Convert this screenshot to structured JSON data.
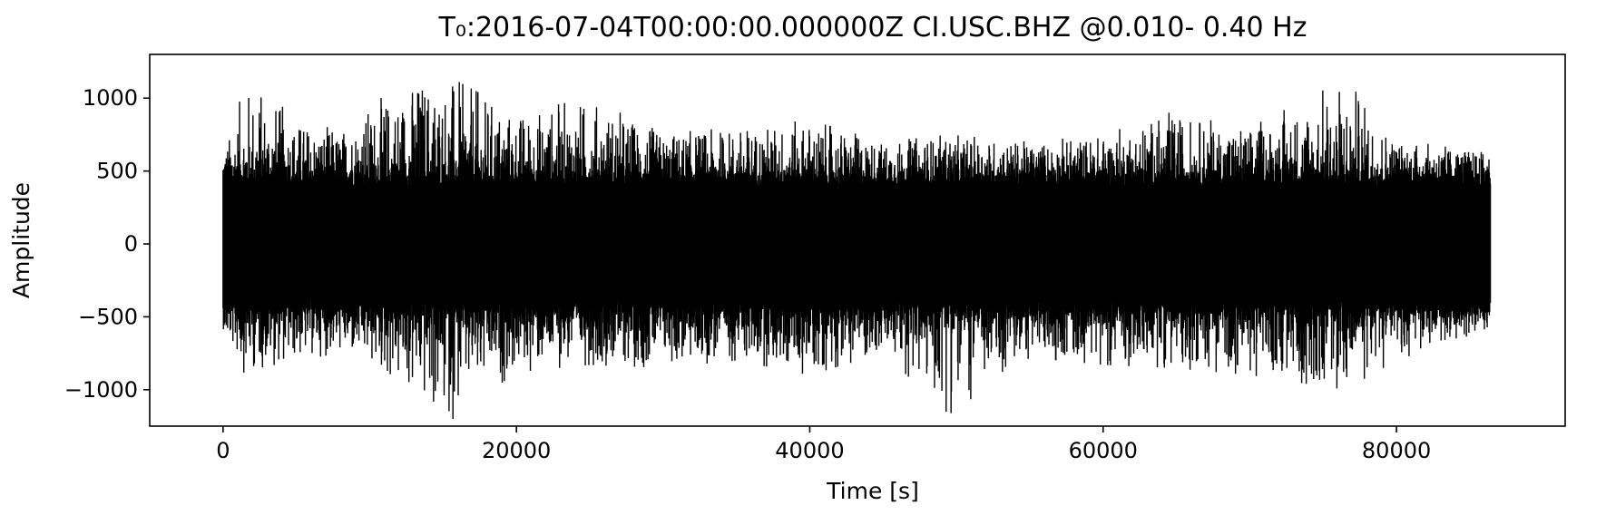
{
  "chart_data": {
    "type": "line",
    "title": "T₀:2016-07-04T00:00:00.000000Z   CI.USC.BHZ   @0.010- 0.40 Hz",
    "xlabel": "Time [s]",
    "ylabel": "Amplitude",
    "xlim": [
      -5000,
      91500
    ],
    "ylim": [
      -1250,
      1300
    ],
    "x_ticks": [
      0,
      20000,
      40000,
      60000,
      80000
    ],
    "x_tick_labels": [
      "0",
      "20000",
      "40000",
      "60000",
      "80000"
    ],
    "y_ticks": [
      -1000,
      -500,
      0,
      500,
      1000
    ],
    "y_tick_labels": [
      "−1000",
      "−500",
      "0",
      "500",
      "1000"
    ],
    "grid": false,
    "legend": "none",
    "series": [
      {
        "color": "#000000",
        "x_range": [
          0,
          86400
        ],
        "envelope": {
          "x": [
            0,
            1500,
            2500,
            5000,
            8000,
            10000,
            13500,
            15000,
            20000,
            25000,
            30000,
            35000,
            40000,
            45000,
            49500,
            55000,
            60000,
            64500,
            70000,
            76500,
            80000,
            86400
          ],
          "upper": [
            600,
            1100,
            1090,
            850,
            780,
            950,
            1180,
            1170,
            900,
            1000,
            760,
            800,
            850,
            700,
            750,
            700,
            750,
            900,
            800,
            1130,
            720,
            620
          ],
          "lower": [
            -580,
            -900,
            -850,
            -800,
            -750,
            -850,
            -1120,
            -1250,
            -880,
            -830,
            -850,
            -800,
            -900,
            -750,
            -1170,
            -780,
            -830,
            -850,
            -900,
            -1000,
            -800,
            -580
          ]
        }
      }
    ]
  }
}
